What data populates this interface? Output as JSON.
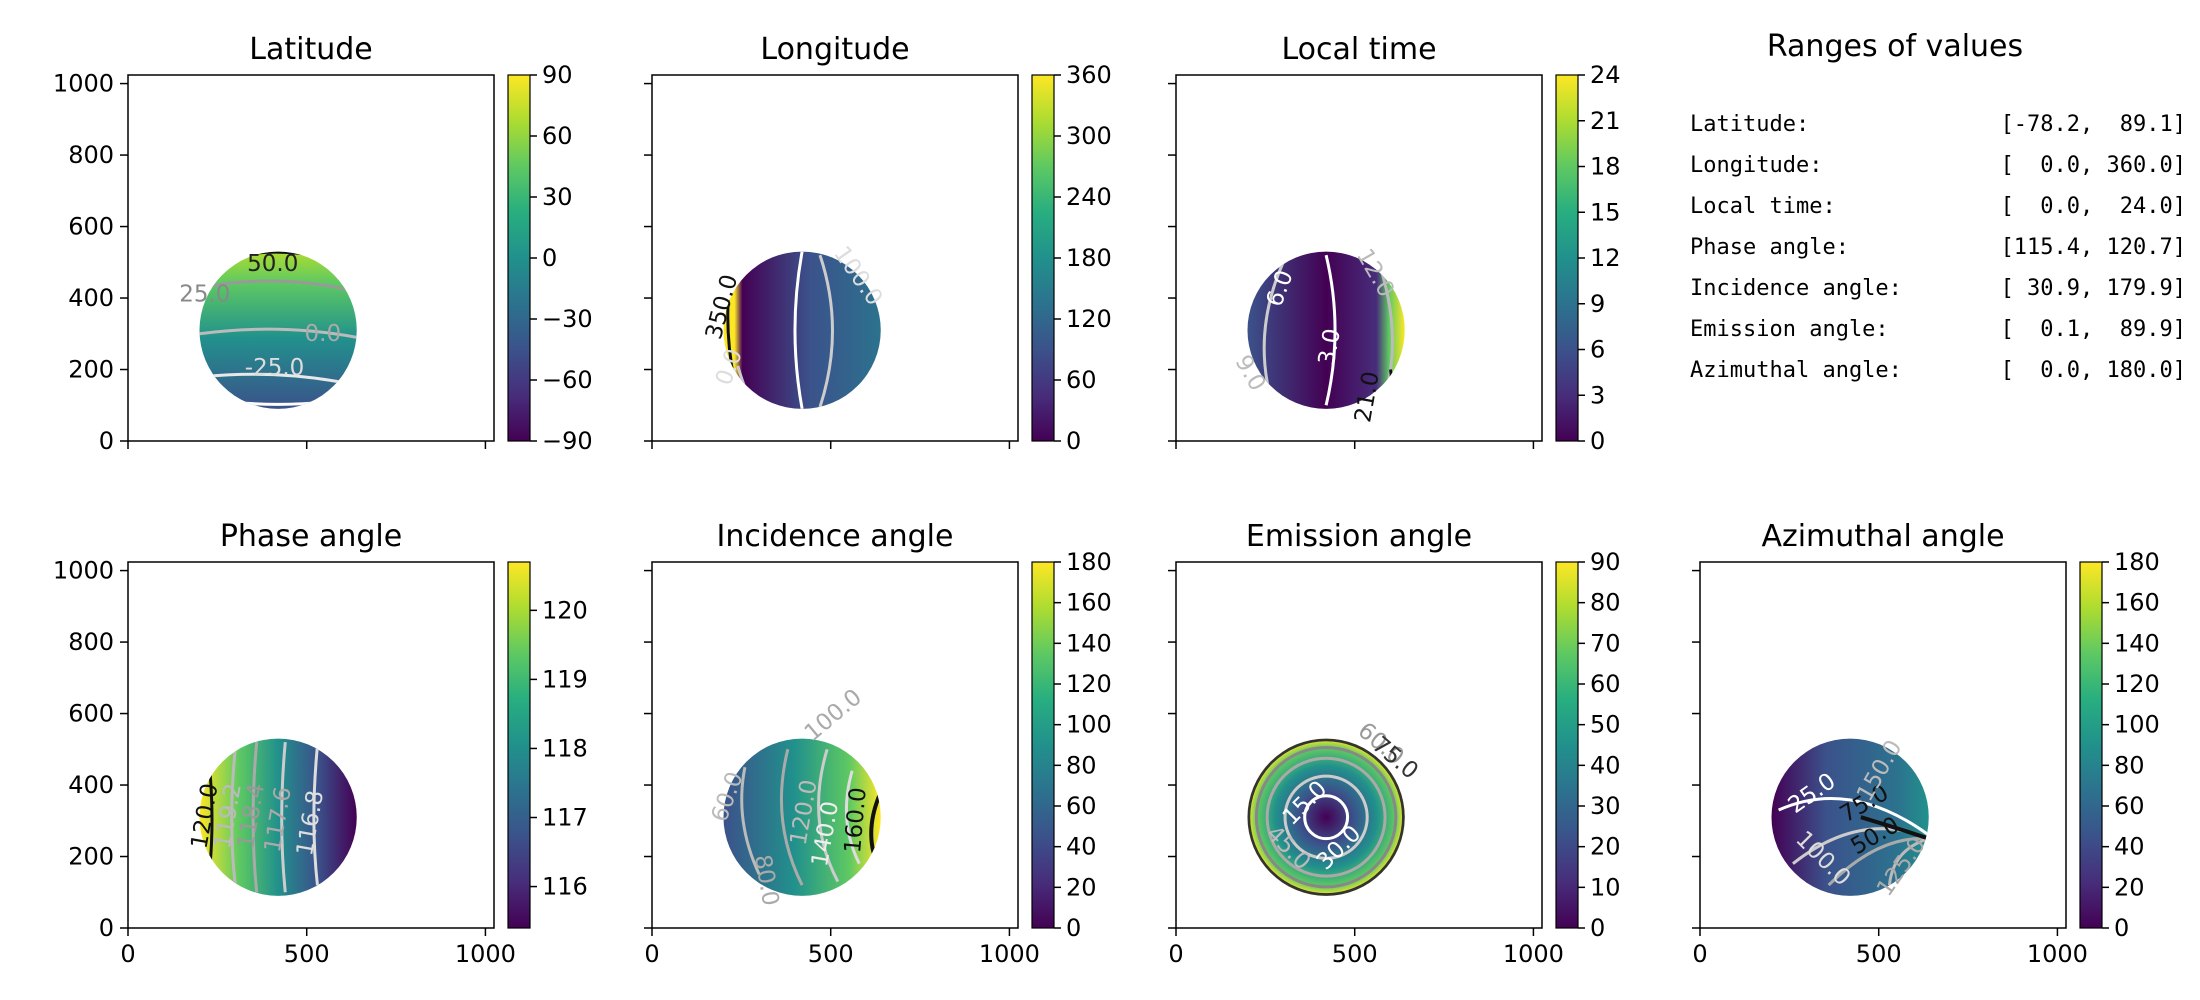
{
  "chart_data": [
    {
      "type": "heatmap",
      "title": "Latitude",
      "xlim": [
        0,
        1024
      ],
      "ylim": [
        0,
        1024
      ],
      "xticks": [
        0,
        500,
        1000
      ],
      "yticks": [
        0,
        200,
        400,
        600,
        800,
        1000
      ],
      "colorbar": {
        "min": -90,
        "max": 90,
        "ticks": [
          "90",
          "60",
          "30",
          "0",
          "−30",
          "−60",
          "−90"
        ]
      },
      "contour_labels": [
        "50.0",
        "25.0",
        "0.0",
        "-25.0"
      ]
    },
    {
      "type": "heatmap",
      "title": "Longitude",
      "xlim": [
        0,
        1024
      ],
      "ylim": [
        0,
        1024
      ],
      "xticks": [
        0,
        500,
        1000
      ],
      "yticks": [
        0,
        200,
        400,
        600,
        800,
        1000
      ],
      "colorbar": {
        "min": 0,
        "max": 360,
        "ticks": [
          "360",
          "300",
          "240",
          "180",
          "120",
          "60",
          "0"
        ]
      },
      "contour_labels": [
        "350.0",
        "100.0",
        "0.0"
      ]
    },
    {
      "type": "heatmap",
      "title": "Local time",
      "xlim": [
        0,
        1024
      ],
      "ylim": [
        0,
        1024
      ],
      "xticks": [
        0,
        500,
        1000
      ],
      "yticks": [
        0,
        200,
        400,
        600,
        800,
        1000
      ],
      "colorbar": {
        "min": 0,
        "max": 24,
        "ticks": [
          "24",
          "21",
          "18",
          "15",
          "12",
          "9",
          "6",
          "3",
          "0"
        ]
      },
      "contour_labels": [
        "6.0",
        "12.0",
        "3.0",
        "9.0",
        "21.0"
      ]
    },
    {
      "type": "heatmap",
      "title": "Phase angle",
      "xlim": [
        0,
        1024
      ],
      "ylim": [
        0,
        1024
      ],
      "xticks": [
        0,
        500,
        1000
      ],
      "yticks": [
        0,
        200,
        400,
        600,
        800,
        1000
      ],
      "colorbar": {
        "min": 115.4,
        "max": 120.7,
        "ticks": [
          "120",
          "119",
          "118",
          "117",
          "116"
        ]
      },
      "contour_labels": [
        "120.0",
        "119.2",
        "118.4",
        "117.6",
        "116.8"
      ]
    },
    {
      "type": "heatmap",
      "title": "Incidence angle",
      "xlim": [
        0,
        1024
      ],
      "ylim": [
        0,
        1024
      ],
      "xticks": [
        0,
        500,
        1000
      ],
      "yticks": [
        0,
        200,
        400,
        600,
        800,
        1000
      ],
      "colorbar": {
        "min": 0,
        "max": 180,
        "ticks": [
          "180",
          "160",
          "140",
          "120",
          "100",
          "80",
          "60",
          "40",
          "20",
          "0"
        ]
      },
      "contour_labels": [
        "60.0",
        "100.0",
        "120.0",
        "140.0",
        "160.0",
        "80.0"
      ]
    },
    {
      "type": "heatmap",
      "title": "Emission angle",
      "xlim": [
        0,
        1024
      ],
      "ylim": [
        0,
        1024
      ],
      "xticks": [
        0,
        500,
        1000
      ],
      "yticks": [
        0,
        200,
        400,
        600,
        800,
        1000
      ],
      "colorbar": {
        "min": 0,
        "max": 90,
        "ticks": [
          "90",
          "80",
          "70",
          "60",
          "50",
          "40",
          "30",
          "20",
          "10",
          "0"
        ]
      },
      "contour_labels": [
        "15.0",
        "30.0",
        "45.0",
        "60.0",
        "75.0"
      ]
    },
    {
      "type": "heatmap",
      "title": "Azimuthal angle",
      "xlim": [
        0,
        1024
      ],
      "ylim": [
        0,
        1024
      ],
      "xticks": [
        0,
        500,
        1000
      ],
      "yticks": [
        0,
        200,
        400,
        600,
        800,
        1000
      ],
      "colorbar": {
        "min": 0,
        "max": 180,
        "ticks": [
          "180",
          "160",
          "140",
          "120",
          "100",
          "80",
          "60",
          "40",
          "20",
          "0"
        ]
      },
      "contour_labels": [
        "25.0",
        "50.0",
        "75.0",
        "100.0",
        "125.0",
        "150.0"
      ]
    },
    {
      "type": "table",
      "title": "Ranges of values",
      "rows": [
        {
          "name": "Latitude:",
          "range": "[-78.2,  89.1]"
        },
        {
          "name": "Longitude:",
          "range": "[  0.0, 360.0]"
        },
        {
          "name": "Local time:",
          "range": "[  0.0,  24.0]"
        },
        {
          "name": "Phase angle:",
          "range": "[115.4, 120.7]"
        },
        {
          "name": "Incidence angle:",
          "range": "[ 30.9, 179.9]"
        },
        {
          "name": "Emission angle:",
          "range": "[  0.1,  89.9]"
        },
        {
          "name": "Azimuthal angle:",
          "range": "[  0.0, 180.0]"
        }
      ]
    }
  ],
  "disk": {
    "center": [
      420,
      310
    ],
    "radius": 220
  },
  "colormap": "viridis"
}
